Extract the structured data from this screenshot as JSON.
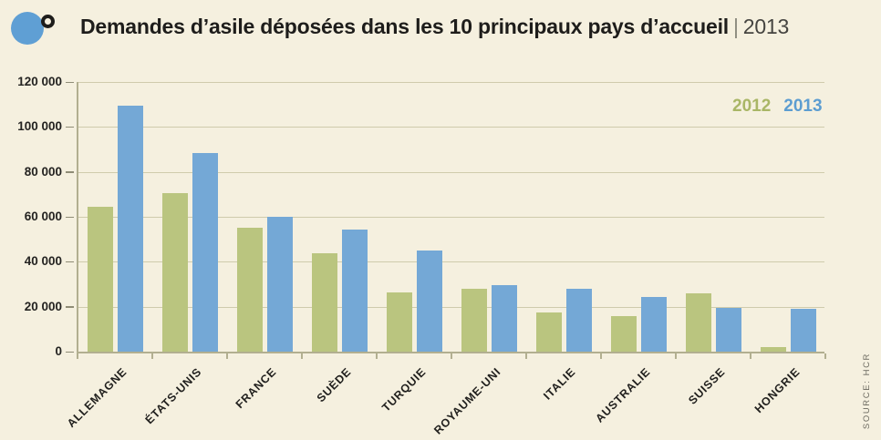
{
  "header": {
    "title": "Demandes d’asile déposées dans les 10 principaux pays d’accueil",
    "separator": "|",
    "year": "2013"
  },
  "legend": [
    {
      "label": "2012",
      "color": "#a9b666"
    },
    {
      "label": "2013",
      "color": "#5c9dd1"
    }
  ],
  "source": "SOURCE: HCR",
  "colors": {
    "background": "#f5f0df",
    "bar_2012": "#bac57f",
    "bar_2013": "#74a8d6",
    "grid": "#cfcbac",
    "axis": "#b2af90",
    "logo_blue": "#5f9fd4",
    "logo_ring": "#1e1d1b",
    "text": "#1e1d1b"
  },
  "chart_data": {
    "type": "bar",
    "title": "Demandes d’asile déposées dans les 10 principaux pays d’accueil | 2013",
    "categories": [
      "ALLEMAGNE",
      "ÉTATS-UNIS",
      "FRANCE",
      "SUÈDE",
      "TURQUIE",
      "ROYAUME-UNI",
      "ITALIE",
      "AUSTRALIE",
      "SUISSE",
      "HONGRIE"
    ],
    "series": [
      {
        "name": "2012",
        "color": "#bac57f",
        "values": [
          64500,
          70400,
          55100,
          43900,
          26500,
          27900,
          17400,
          15800,
          25900,
          2200
        ]
      },
      {
        "name": "2013",
        "color": "#74a8d6",
        "values": [
          109600,
          88400,
          60100,
          54300,
          44800,
          29400,
          27800,
          24300,
          19400,
          18900
        ]
      }
    ],
    "xlabel": "",
    "ylabel": "",
    "ylim": [
      0,
      120000
    ],
    "yticks": [
      0,
      20000,
      40000,
      60000,
      80000,
      100000,
      120000
    ],
    "ytick_labels": [
      "0",
      "20 000",
      "40 000",
      "60 000",
      "80 000",
      "100 000",
      "120 000"
    ],
    "grid": true,
    "legend_position": "top-right",
    "source": "SOURCE: HCR"
  }
}
